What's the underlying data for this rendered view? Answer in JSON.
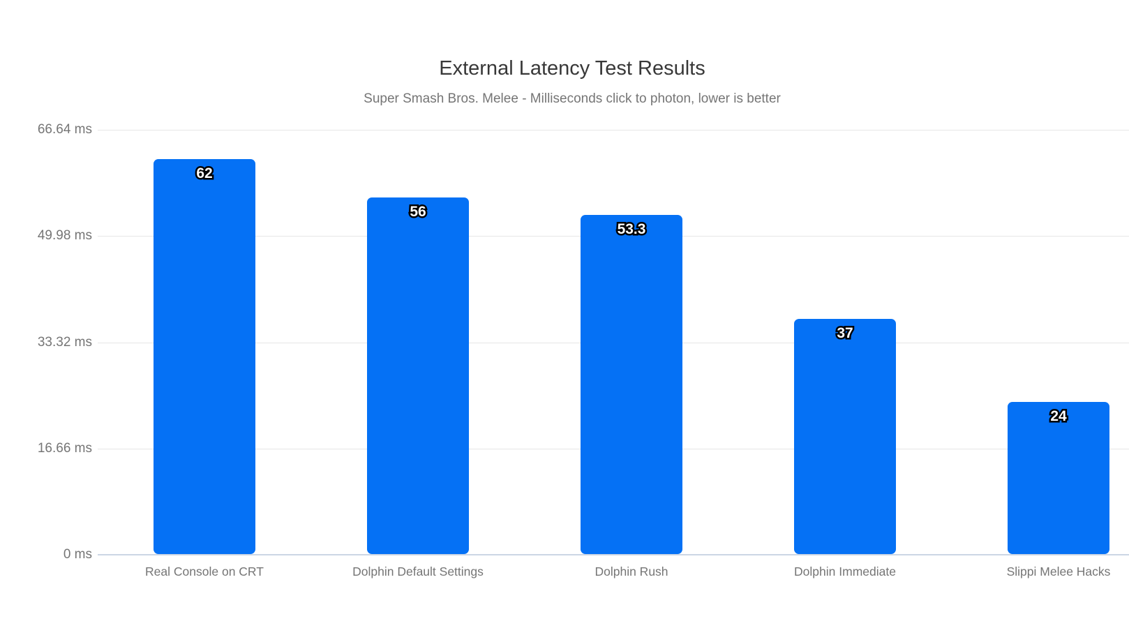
{
  "page": {
    "background": "#ffffff"
  },
  "chart_data": {
    "type": "bar",
    "title": "External Latency Test Results",
    "subtitle": "Super Smash Bros. Melee - Milliseconds click to photon, lower is better",
    "categories": [
      "Real Console on CRT",
      "Dolphin Default Settings",
      "Dolphin Rush",
      "Dolphin Immediate",
      "Slippi Melee Hacks"
    ],
    "values": [
      62,
      56,
      53.3,
      37,
      24
    ],
    "value_labels": [
      "62",
      "56",
      "53.3",
      "37",
      "24"
    ],
    "unit": "ms",
    "ylim": [
      0,
      66.64
    ],
    "yticks": [
      {
        "value": 0,
        "label": "0 ms"
      },
      {
        "value": 16.66,
        "label": "16.66 ms"
      },
      {
        "value": 33.32,
        "label": "33.32 ms"
      },
      {
        "value": 49.98,
        "label": "49.98 ms"
      },
      {
        "value": 66.64,
        "label": "66.64 ms"
      }
    ],
    "grid": true,
    "legend": false,
    "colors": {
      "bar_fill": "#0571f5",
      "value_label_fill": "#ffffff",
      "value_label_outline": "#000000",
      "gridline": "#e6e6e6",
      "axis_line": "#ccd6e4",
      "tick_text": "#757575",
      "title_text": "#383838"
    }
  }
}
